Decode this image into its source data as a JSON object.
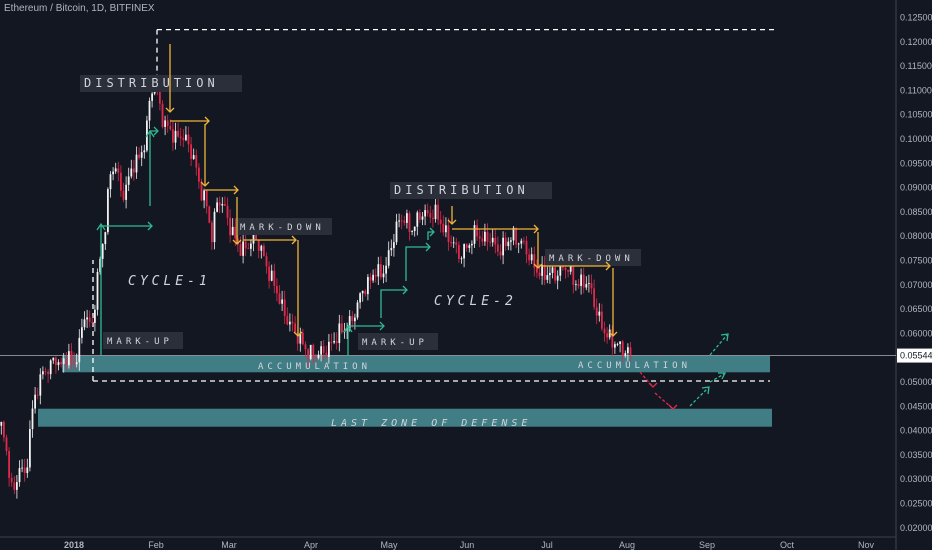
{
  "header": {
    "symbol": "Ethereum / Bitcoin, 1D, BITFINEX"
  },
  "colors": {
    "background": "#131722",
    "up": "#f2f2f2",
    "down": "#e0294b",
    "zone": "#4a8f96",
    "arrow_orange": "#f0b43a",
    "arrow_green": "#2fb894",
    "arrow_red": "#e0294b",
    "dashed": "#ffffff",
    "axis_text": "#b2b5be"
  },
  "chart_data": {
    "type": "candlestick",
    "title": "Ethereum / Bitcoin, 1D, BITFINEX",
    "y_axis": {
      "ticks": [
        "0.125000",
        "0.120000",
        "0.115000",
        "0.110000",
        "0.105000",
        "0.100000",
        "0.095000",
        "0.090000",
        "0.085000",
        "0.080000",
        "0.075000",
        "0.070000",
        "0.065000",
        "0.060000",
        "0.055000",
        "0.050000",
        "0.045000",
        "0.040000",
        "0.035000",
        "0.030000",
        "0.025000",
        "0.020000"
      ],
      "range": [
        0.0195,
        0.1265
      ],
      "position": "right"
    },
    "x_axis": {
      "ticks": [
        "2018",
        "Feb",
        "Mar",
        "Apr",
        "May",
        "Jun",
        "Jul",
        "Aug",
        "Sep",
        "Oct",
        "Nov"
      ]
    },
    "current_price": {
      "label": "0.055440",
      "value": 0.05544
    },
    "price_path": [
      [
        0,
        0.041
      ],
      [
        6,
        0.0345
      ],
      [
        12,
        0.026
      ],
      [
        18,
        0.033
      ],
      [
        24,
        0.03
      ],
      [
        30,
        0.043
      ],
      [
        36,
        0.049
      ],
      [
        42,
        0.052
      ],
      [
        48,
        0.053
      ],
      [
        54,
        0.055
      ],
      [
        60,
        0.053
      ],
      [
        66,
        0.056
      ],
      [
        72,
        0.053
      ],
      [
        78,
        0.058
      ],
      [
        84,
        0.065
      ],
      [
        90,
        0.06
      ],
      [
        96,
        0.072
      ],
      [
        102,
        0.079
      ],
      [
        108,
        0.092
      ],
      [
        114,
        0.095
      ],
      [
        120,
        0.088
      ],
      [
        126,
        0.091
      ],
      [
        132,
        0.095
      ],
      [
        138,
        0.096
      ],
      [
        144,
        0.1
      ],
      [
        148,
        0.108
      ],
      [
        153,
        0.113
      ],
      [
        157,
        0.108
      ],
      [
        162,
        0.103
      ],
      [
        168,
        0.102
      ],
      [
        174,
        0.1
      ],
      [
        180,
        0.101
      ],
      [
        186,
        0.099
      ],
      [
        192,
        0.096
      ],
      [
        198,
        0.09
      ],
      [
        204,
        0.087
      ],
      [
        210,
        0.08
      ],
      [
        216,
        0.088
      ],
      [
        222,
        0.086
      ],
      [
        228,
        0.082
      ],
      [
        234,
        0.079
      ],
      [
        240,
        0.077
      ],
      [
        246,
        0.078
      ],
      [
        252,
        0.08
      ],
      [
        258,
        0.078
      ],
      [
        264,
        0.074
      ],
      [
        270,
        0.071
      ],
      [
        276,
        0.068
      ],
      [
        282,
        0.064
      ],
      [
        288,
        0.062
      ],
      [
        294,
        0.06
      ],
      [
        300,
        0.058
      ],
      [
        306,
        0.056
      ],
      [
        312,
        0.0555
      ],
      [
        318,
        0.056
      ],
      [
        324,
        0.0565
      ],
      [
        330,
        0.058
      ],
      [
        336,
        0.06
      ],
      [
        342,
        0.061
      ],
      [
        348,
        0.062
      ],
      [
        354,
        0.065
      ],
      [
        360,
        0.069
      ],
      [
        366,
        0.07
      ],
      [
        372,
        0.073
      ],
      [
        378,
        0.072
      ],
      [
        384,
        0.074
      ],
      [
        390,
        0.079
      ],
      [
        396,
        0.083
      ],
      [
        402,
        0.084
      ],
      [
        408,
        0.081
      ],
      [
        414,
        0.083
      ],
      [
        420,
        0.085
      ],
      [
        426,
        0.084
      ],
      [
        432,
        0.085
      ],
      [
        438,
        0.083
      ],
      [
        444,
        0.08
      ],
      [
        450,
        0.079
      ],
      [
        456,
        0.076
      ],
      [
        462,
        0.077
      ],
      [
        468,
        0.079
      ],
      [
        474,
        0.081
      ],
      [
        480,
        0.079
      ],
      [
        486,
        0.08
      ],
      [
        492,
        0.078
      ],
      [
        498,
        0.077
      ],
      [
        504,
        0.079
      ],
      [
        510,
        0.08
      ],
      [
        516,
        0.079
      ],
      [
        522,
        0.078
      ],
      [
        528,
        0.075
      ],
      [
        534,
        0.073
      ],
      [
        540,
        0.072
      ],
      [
        546,
        0.0725
      ],
      [
        552,
        0.072
      ],
      [
        558,
        0.073
      ],
      [
        564,
        0.074
      ],
      [
        570,
        0.071
      ],
      [
        576,
        0.07
      ],
      [
        582,
        0.071
      ],
      [
        588,
        0.069
      ],
      [
        594,
        0.064
      ],
      [
        600,
        0.061
      ],
      [
        606,
        0.059
      ],
      [
        612,
        0.058
      ],
      [
        618,
        0.057
      ],
      [
        624,
        0.056
      ],
      [
        630,
        0.0554
      ]
    ],
    "zones": [
      {
        "label": "ACCUMULATION",
        "value_low": 0.052,
        "value_high": 0.0555
      },
      {
        "label": "LAST ZONE OF DEFENSE",
        "value_low": 0.0408,
        "value_high": 0.0445
      }
    ],
    "dashed_levels": [
      {
        "name": "top",
        "value": 0.1225
      },
      {
        "name": "bottom",
        "value": 0.0502
      }
    ],
    "annotations": {
      "distribution_1": "DISTRIBUTION",
      "distribution_2": "DISTRIBUTION",
      "cycle_1": "CYCLE-1",
      "cycle_2": "CYCLE-2",
      "mark_down_1": "MARK-DOWN",
      "mark_down_2": "MARK-DOWN",
      "mark_up_1": "MARK-UP",
      "mark_up_2": "MARK-UP",
      "accumulation_1": "ACCUMULATION",
      "accumulation_2": "ACCUMULATION",
      "last_zone": "LAST ZONE OF DEFENSE"
    }
  }
}
